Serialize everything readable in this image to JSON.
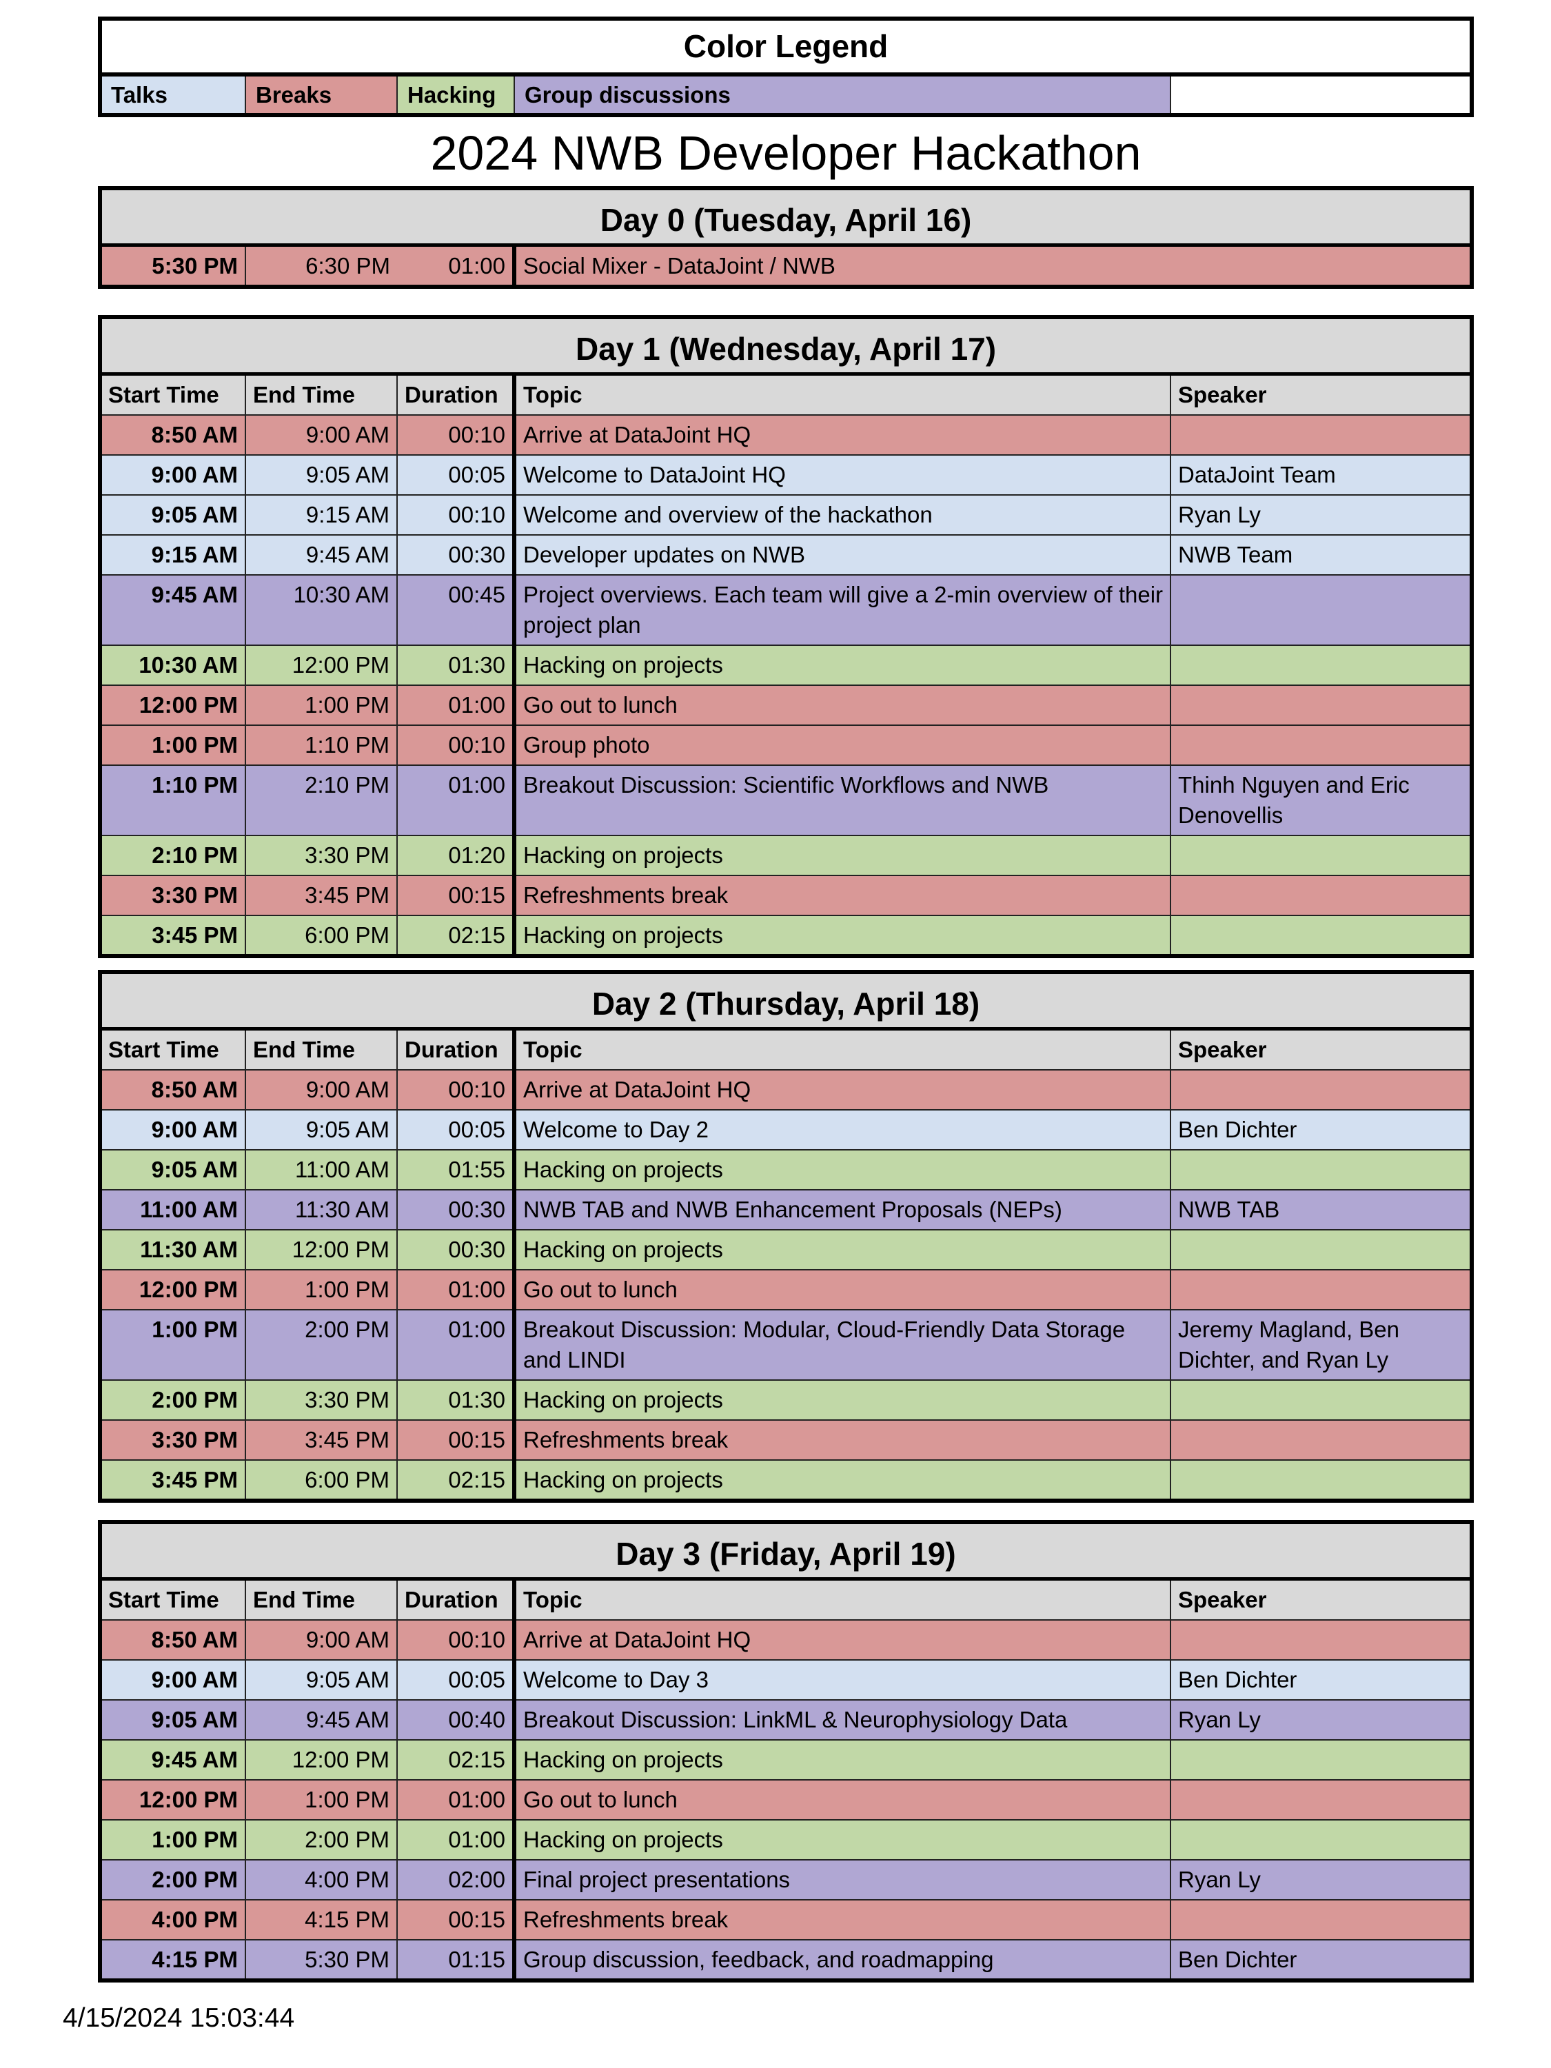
{
  "legend": {
    "title": "Color Legend",
    "items": [
      {
        "label": "Talks",
        "type": "talk"
      },
      {
        "label": "Breaks",
        "type": "break"
      },
      {
        "label": "Hacking",
        "type": "hack"
      },
      {
        "label": "Group discussions",
        "type": "group"
      }
    ]
  },
  "colors": {
    "talk": "#d3e0f1",
    "break": "#d99897",
    "hack": "#c1d8a7",
    "group": "#b0a7d3",
    "header": "#d9d9d9"
  },
  "title": "2024 NWB Developer Hackathon",
  "columns": [
    "Start Time",
    "End Time",
    "Duration",
    "Topic",
    "Speaker"
  ],
  "day0": {
    "title": "Day 0 (Tuesday, April 16)",
    "rows": [
      {
        "start": "5:30 PM",
        "end": "6:30 PM",
        "duration": "01:00",
        "topic": "Social Mixer - DataJoint / NWB",
        "speaker": "",
        "type": "break"
      }
    ]
  },
  "days": [
    {
      "title": "Day 1 (Wednesday, April 17)",
      "rows": [
        {
          "start": "8:50 AM",
          "end": "9:00 AM",
          "duration": "00:10",
          "topic": "Arrive at DataJoint HQ",
          "speaker": "",
          "type": "break"
        },
        {
          "start": "9:00 AM",
          "end": "9:05 AM",
          "duration": "00:05",
          "topic": "Welcome to DataJoint HQ",
          "speaker": "DataJoint Team",
          "type": "talk"
        },
        {
          "start": "9:05 AM",
          "end": "9:15 AM",
          "duration": "00:10",
          "topic": "Welcome and overview of the hackathon",
          "speaker": "Ryan Ly",
          "type": "talk"
        },
        {
          "start": "9:15 AM",
          "end": "9:45 AM",
          "duration": "00:30",
          "topic": "Developer updates on NWB",
          "speaker": "NWB Team",
          "type": "talk"
        },
        {
          "start": "9:45 AM",
          "end": "10:30 AM",
          "duration": "00:45",
          "topic": "Project overviews. Each team will give a 2-min overview of their project plan",
          "speaker": "",
          "type": "group"
        },
        {
          "start": "10:30 AM",
          "end": "12:00 PM",
          "duration": "01:30",
          "topic": "Hacking on projects",
          "speaker": "",
          "type": "hack"
        },
        {
          "start": "12:00 PM",
          "end": "1:00 PM",
          "duration": "01:00",
          "topic": "Go out to lunch",
          "speaker": "",
          "type": "break"
        },
        {
          "start": "1:00 PM",
          "end": "1:10 PM",
          "duration": "00:10",
          "topic": "Group photo",
          "speaker": "",
          "type": "break"
        },
        {
          "start": "1:10 PM",
          "end": "2:10 PM",
          "duration": "01:00",
          "topic": "Breakout Discussion: Scientific Workflows and NWB",
          "speaker": "Thinh Nguyen and Eric Denovellis",
          "type": "group"
        },
        {
          "start": "2:10 PM",
          "end": "3:30 PM",
          "duration": "01:20",
          "topic": "Hacking on projects",
          "speaker": "",
          "type": "hack"
        },
        {
          "start": "3:30 PM",
          "end": "3:45 PM",
          "duration": "00:15",
          "topic": "Refreshments break",
          "speaker": "",
          "type": "break"
        },
        {
          "start": "3:45 PM",
          "end": "6:00 PM",
          "duration": "02:15",
          "topic": "Hacking on projects",
          "speaker": "",
          "type": "hack"
        }
      ]
    },
    {
      "title": "Day 2 (Thursday, April 18)",
      "rows": [
        {
          "start": "8:50 AM",
          "end": "9:00 AM",
          "duration": "00:10",
          "topic": "Arrive at DataJoint HQ",
          "speaker": "",
          "type": "break"
        },
        {
          "start": "9:00 AM",
          "end": "9:05 AM",
          "duration": "00:05",
          "topic": "Welcome to Day 2",
          "speaker": "Ben Dichter",
          "type": "talk"
        },
        {
          "start": "9:05 AM",
          "end": "11:00 AM",
          "duration": "01:55",
          "topic": "Hacking on projects",
          "speaker": "",
          "type": "hack"
        },
        {
          "start": "11:00 AM",
          "end": "11:30 AM",
          "duration": "00:30",
          "topic": "NWB TAB and NWB Enhancement Proposals (NEPs)",
          "speaker": "NWB TAB",
          "type": "group"
        },
        {
          "start": "11:30 AM",
          "end": "12:00 PM",
          "duration": "00:30",
          "topic": "Hacking on projects",
          "speaker": "",
          "type": "hack"
        },
        {
          "start": "12:00 PM",
          "end": "1:00 PM",
          "duration": "01:00",
          "topic": "Go out to lunch",
          "speaker": "",
          "type": "break"
        },
        {
          "start": "1:00 PM",
          "end": "2:00 PM",
          "duration": "01:00",
          "topic": "Breakout Discussion: Modular, Cloud-Friendly Data Storage and LINDI",
          "speaker": "Jeremy Magland, Ben Dichter, and Ryan Ly",
          "type": "group"
        },
        {
          "start": "2:00 PM",
          "end": "3:30 PM",
          "duration": "01:30",
          "topic": "Hacking on projects",
          "speaker": "",
          "type": "hack"
        },
        {
          "start": "3:30 PM",
          "end": "3:45 PM",
          "duration": "00:15",
          "topic": "Refreshments break",
          "speaker": "",
          "type": "break"
        },
        {
          "start": "3:45 PM",
          "end": "6:00 PM",
          "duration": "02:15",
          "topic": "Hacking on projects",
          "speaker": "",
          "type": "hack"
        }
      ]
    },
    {
      "title": "Day 3 (Friday, April 19)",
      "rows": [
        {
          "start": "8:50 AM",
          "end": "9:00 AM",
          "duration": "00:10",
          "topic": "Arrive at DataJoint HQ",
          "speaker": "",
          "type": "break"
        },
        {
          "start": "9:00 AM",
          "end": "9:05 AM",
          "duration": "00:05",
          "topic": "Welcome to Day 3",
          "speaker": "Ben Dichter",
          "type": "talk"
        },
        {
          "start": "9:05 AM",
          "end": "9:45 AM",
          "duration": "00:40",
          "topic": "Breakout Discussion: LinkML & Neurophysiology Data",
          "speaker": "Ryan Ly",
          "type": "group"
        },
        {
          "start": "9:45 AM",
          "end": "12:00 PM",
          "duration": "02:15",
          "topic": "Hacking on projects",
          "speaker": "",
          "type": "hack"
        },
        {
          "start": "12:00 PM",
          "end": "1:00 PM",
          "duration": "01:00",
          "topic": "Go out to lunch",
          "speaker": "",
          "type": "break"
        },
        {
          "start": "1:00 PM",
          "end": "2:00 PM",
          "duration": "01:00",
          "topic": "Hacking on projects",
          "speaker": "",
          "type": "hack"
        },
        {
          "start": "2:00 PM",
          "end": "4:00 PM",
          "duration": "02:00",
          "topic": "Final project presentations",
          "speaker": "Ryan Ly",
          "type": "group"
        },
        {
          "start": "4:00 PM",
          "end": "4:15 PM",
          "duration": "00:15",
          "topic": "Refreshments break",
          "speaker": "",
          "type": "break"
        },
        {
          "start": "4:15 PM",
          "end": "5:30 PM",
          "duration": "01:15",
          "topic": "Group discussion, feedback, and roadmapping",
          "speaker": "Ben Dichter",
          "type": "group"
        }
      ]
    }
  ],
  "footer": {
    "timestamp": "4/15/2024 15:03:44"
  }
}
